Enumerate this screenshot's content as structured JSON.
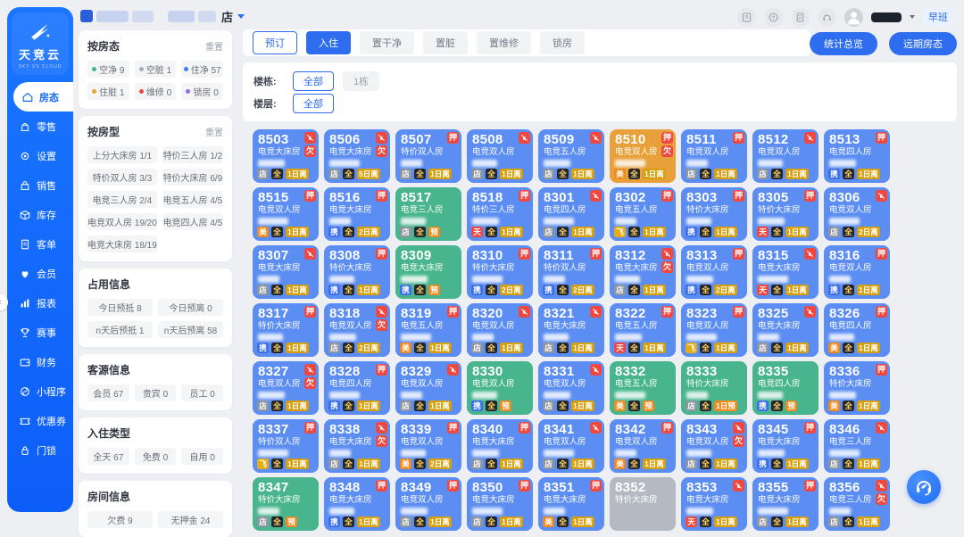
{
  "header": {
    "store_suffix": "店",
    "shift_label": "早班",
    "icons": [
      "board",
      "help",
      "doc",
      "headset"
    ],
    "stats_button": "统计总览",
    "future_button": "远期房态"
  },
  "sidebar": {
    "logo_title": "天竞云",
    "logo_subtitle": "SKY VS CLOUD",
    "items": [
      {
        "id": "room-status",
        "label": "房态",
        "icon": "home-icon",
        "active": true
      },
      {
        "id": "retail",
        "label": "零售",
        "icon": "retail-icon",
        "active": false
      },
      {
        "id": "settings",
        "label": "设置",
        "icon": "settings-icon",
        "active": false
      },
      {
        "id": "sales",
        "label": "销售",
        "icon": "sales-icon",
        "active": false
      },
      {
        "id": "inventory",
        "label": "库存",
        "icon": "inventory-icon",
        "active": false
      },
      {
        "id": "orders",
        "label": "客单",
        "icon": "orders-icon",
        "active": false
      },
      {
        "id": "members",
        "label": "会员",
        "icon": "members-icon",
        "active": false
      },
      {
        "id": "reports",
        "label": "报表",
        "icon": "reports-icon",
        "active": false
      },
      {
        "id": "events",
        "label": "赛事",
        "icon": "events-icon",
        "active": false
      },
      {
        "id": "finance",
        "label": "财务",
        "icon": "finance-icon",
        "active": false
      },
      {
        "id": "miniapp",
        "label": "小程序",
        "icon": "miniapp-icon",
        "active": false
      },
      {
        "id": "coupons",
        "label": "优惠券",
        "icon": "coupons-icon",
        "active": false
      },
      {
        "id": "doorlock",
        "label": "门锁",
        "icon": "doorlock-icon",
        "active": false
      }
    ]
  },
  "filter_panel": {
    "reset_label": "重置",
    "sections": [
      {
        "id": "by-status",
        "title": "按房态",
        "reset": true,
        "cols": 3,
        "status_chips": [
          {
            "label": "空净",
            "count": "9",
            "dot": "#3bbd8c"
          },
          {
            "label": "空脏",
            "count": "1",
            "dot": "#a8aeb8"
          },
          {
            "label": "住净",
            "count": "57",
            "dot": "#3d7bf7"
          },
          {
            "label": "住脏",
            "count": "1",
            "dot": "#f0a02f"
          },
          {
            "label": "维修",
            "count": "0",
            "dot": "#f0483e"
          },
          {
            "label": "锁房",
            "count": "0",
            "dot": "#8f6bf6"
          }
        ]
      },
      {
        "id": "by-type",
        "title": "按房型",
        "reset": true,
        "cols": 2,
        "chips": [
          "上分大床房 1/1",
          "特价三人房 1/2",
          "特价双人房 3/3",
          "特价大床房 6/9",
          "电竞三人房 2/4",
          "电竞五人房 4/5",
          "电竞双人房 19/20",
          "电竞四人房 4/5",
          "电竞大床房 18/19"
        ]
      },
      {
        "id": "occupancy",
        "title": "占用信息",
        "reset": false,
        "cols": 2,
        "chips": [
          "今日预抵 8",
          "今日预离 0",
          "n天后预抵 1",
          "n天后预离 58"
        ]
      },
      {
        "id": "guest-source",
        "title": "客源信息",
        "reset": false,
        "cols": 3,
        "chips": [
          "会员 67",
          "贵宾 0",
          "员工 0"
        ]
      },
      {
        "id": "stay-type",
        "title": "入住类型",
        "reset": false,
        "cols": 3,
        "chips": [
          "全天 67",
          "免费 0",
          "自用 0"
        ]
      },
      {
        "id": "room-info",
        "title": "房间信息",
        "reset": false,
        "cols": 2,
        "chips": [
          "欠费 9",
          "无押金 24"
        ]
      }
    ]
  },
  "toolbar": {
    "actions": [
      {
        "label": "预订",
        "style": "outline"
      },
      {
        "label": "入住",
        "style": "primary"
      },
      {
        "label": "置干净",
        "style": "plain"
      },
      {
        "label": "置脏",
        "style": "plain"
      },
      {
        "label": "置维修",
        "style": "plain"
      },
      {
        "label": "锁房",
        "style": "plain"
      }
    ]
  },
  "building_filter": {
    "rows": [
      {
        "label": "楼栋:",
        "options": [
          {
            "label": "全部",
            "selected": true
          },
          {
            "label": "1栋",
            "selected": false
          }
        ]
      },
      {
        "label": "楼层:",
        "options": [
          {
            "label": "全部",
            "selected": true
          }
        ]
      }
    ]
  },
  "colors": {
    "status": {
      "oc": "#5b8df2",
      "vc": "#48b58e",
      "od": "#e8a13a",
      "vd": "#b5bac2"
    },
    "primary": "#2f6df0",
    "badge_red": "#f0483e",
    "stay_bg": "#24262b",
    "stay_fg": "#ffd666",
    "depart_bg": "#d7a00f",
    "reserve_bg": "#f08a1d",
    "channels": {
      "店": "#8e959f",
      "携": "#3d6fe8",
      "美": "#f08a1d",
      "飞": "#e4af16",
      "天": "#f0483e"
    }
  },
  "rooms": [
    {
      "num": "8503",
      "type": "电竞大床房",
      "status": "oc",
      "no_clean": true,
      "tags": [
        "欠"
      ],
      "channel": "店",
      "stay": "全",
      "depart": "1日离"
    },
    {
      "num": "8506",
      "type": "电竞大床房",
      "status": "oc",
      "no_clean": true,
      "tags": [
        "欠"
      ],
      "channel": "店",
      "stay": "全",
      "depart": "5日离"
    },
    {
      "num": "8507",
      "type": "特价双人房",
      "status": "oc",
      "no_clean": false,
      "tags": [
        "押"
      ],
      "channel": "店",
      "stay": "全",
      "depart": "1日离"
    },
    {
      "num": "8508",
      "type": "电竞双人房",
      "status": "oc",
      "no_clean": true,
      "tags": [],
      "channel": "店",
      "stay": "全",
      "depart": "1日离"
    },
    {
      "num": "8509",
      "type": "电竞五人房",
      "status": "oc",
      "no_clean": true,
      "tags": [],
      "channel": "店",
      "stay": "全",
      "depart": "1日离"
    },
    {
      "num": "8510",
      "type": "电竞双人房",
      "status": "od",
      "no_clean": false,
      "tags": [
        "押",
        "欠"
      ],
      "channel": "美",
      "stay": "全",
      "depart": "1日离"
    },
    {
      "num": "8511",
      "type": "电竞双人房",
      "status": "oc",
      "no_clean": false,
      "tags": [
        "押"
      ],
      "channel": "店",
      "stay": "全",
      "depart": "1日离"
    },
    {
      "num": "8512",
      "type": "电竞双人房",
      "status": "oc",
      "no_clean": true,
      "tags": [],
      "channel": "店",
      "stay": "全",
      "depart": "1日离"
    },
    {
      "num": "8513",
      "type": "电竞四人房",
      "status": "oc",
      "no_clean": false,
      "tags": [
        "押"
      ],
      "channel": "携",
      "stay": "全",
      "depart": "1日离"
    },
    {
      "num": "8515",
      "type": "电竞双人房",
      "status": "oc",
      "no_clean": false,
      "tags": [
        "押"
      ],
      "channel": "美",
      "stay": "全",
      "depart": "1日离"
    },
    {
      "num": "8516",
      "type": "电竞大床房",
      "status": "oc",
      "no_clean": false,
      "tags": [
        "押"
      ],
      "channel": "携",
      "stay": "全",
      "depart": "2日离"
    },
    {
      "num": "8517",
      "type": "电竞三人房",
      "status": "vc",
      "no_clean": false,
      "tags": [],
      "channel": "店",
      "stay": "全",
      "depart": "预"
    },
    {
      "num": "8518",
      "type": "特价三人房",
      "status": "oc",
      "no_clean": false,
      "tags": [
        "押"
      ],
      "channel": "天",
      "stay": "全",
      "depart": "1日离"
    },
    {
      "num": "8301",
      "type": "电竞四人房",
      "status": "oc",
      "no_clean": true,
      "tags": [],
      "channel": "店",
      "stay": "全",
      "depart": "1日离"
    },
    {
      "num": "8302",
      "type": "电竞五人房",
      "status": "oc",
      "no_clean": false,
      "tags": [
        "押"
      ],
      "channel": "飞",
      "stay": "全",
      "depart": "1日离"
    },
    {
      "num": "8303",
      "type": "特价大床房",
      "status": "oc",
      "no_clean": false,
      "tags": [
        "押"
      ],
      "channel": "携",
      "stay": "全",
      "depart": "1日离"
    },
    {
      "num": "8305",
      "type": "特价大床房",
      "status": "oc",
      "no_clean": false,
      "tags": [
        "押"
      ],
      "channel": "天",
      "stay": "全",
      "depart": "1日离"
    },
    {
      "num": "8306",
      "type": "电竞双人房",
      "status": "oc",
      "no_clean": true,
      "tags": [],
      "channel": "店",
      "stay": "全",
      "depart": "2日离"
    },
    {
      "num": "8307",
      "type": "电竞大床房",
      "status": "oc",
      "no_clean": true,
      "tags": [],
      "channel": "店",
      "stay": "全",
      "depart": "1日离"
    },
    {
      "num": "8308",
      "type": "特价大床房",
      "status": "oc",
      "no_clean": false,
      "tags": [
        "押"
      ],
      "channel": "携",
      "stay": "全",
      "depart": "1日离"
    },
    {
      "num": "8309",
      "type": "电竞大床房",
      "status": "vc",
      "no_clean": false,
      "tags": [],
      "channel": "携",
      "stay": "全",
      "depart": "预"
    },
    {
      "num": "8310",
      "type": "特价大床房",
      "status": "oc",
      "no_clean": false,
      "tags": [
        "押"
      ],
      "channel": "携",
      "stay": "全",
      "depart": "2日离"
    },
    {
      "num": "8311",
      "type": "特价双人房",
      "status": "oc",
      "no_clean": false,
      "tags": [
        "押"
      ],
      "channel": "携",
      "stay": "全",
      "depart": "2日离"
    },
    {
      "num": "8312",
      "type": "电竞大床房",
      "status": "oc",
      "no_clean": true,
      "tags": [
        "欠"
      ],
      "channel": "店",
      "stay": "全",
      "depart": "1日离"
    },
    {
      "num": "8313",
      "type": "电竞双人房",
      "status": "oc",
      "no_clean": false,
      "tags": [
        "押"
      ],
      "channel": "携",
      "stay": "全",
      "depart": "2日离"
    },
    {
      "num": "8315",
      "type": "电竞大床房",
      "status": "oc",
      "no_clean": true,
      "tags": [],
      "channel": "天",
      "stay": "全",
      "depart": "1日离"
    },
    {
      "num": "8316",
      "type": "电竞双人房",
      "status": "oc",
      "no_clean": false,
      "tags": [
        "押"
      ],
      "channel": "携",
      "stay": "全",
      "depart": "1日离"
    },
    {
      "num": "8317",
      "type": "特价大床房",
      "status": "oc",
      "no_clean": false,
      "tags": [
        "押"
      ],
      "channel": "携",
      "stay": "全",
      "depart": "1日离"
    },
    {
      "num": "8318",
      "type": "电竞双人房",
      "status": "oc",
      "no_clean": true,
      "tags": [
        "欠"
      ],
      "channel": "店",
      "stay": "全",
      "depart": "2日离"
    },
    {
      "num": "8319",
      "type": "电竞五人房",
      "status": "oc",
      "no_clean": false,
      "tags": [
        "押"
      ],
      "channel": "美",
      "stay": "全",
      "depart": "1日离"
    },
    {
      "num": "8320",
      "type": "电竞双人房",
      "status": "oc",
      "no_clean": true,
      "tags": [],
      "channel": "店",
      "stay": "全",
      "depart": "1日离"
    },
    {
      "num": "8321",
      "type": "电竞大床房",
      "status": "oc",
      "no_clean": true,
      "tags": [],
      "channel": "店",
      "stay": "全",
      "depart": "1日离"
    },
    {
      "num": "8322",
      "type": "电竞五人房",
      "status": "oc",
      "no_clean": false,
      "tags": [
        "押"
      ],
      "channel": "天",
      "stay": "全",
      "depart": "1日离"
    },
    {
      "num": "8323",
      "type": "电竞双人房",
      "status": "oc",
      "no_clean": false,
      "tags": [
        "押"
      ],
      "channel": "飞",
      "stay": "全",
      "depart": "1日离"
    },
    {
      "num": "8325",
      "type": "电竞大床房",
      "status": "oc",
      "no_clean": true,
      "tags": [],
      "channel": "店",
      "stay": "全",
      "depart": "1日离"
    },
    {
      "num": "8326",
      "type": "电竞四人房",
      "status": "oc",
      "no_clean": false,
      "tags": [
        "押"
      ],
      "channel": "美",
      "stay": "全",
      "depart": "1日离"
    },
    {
      "num": "8327",
      "type": "电竞双人房",
      "status": "oc",
      "no_clean": true,
      "tags": [
        "欠"
      ],
      "channel": "店",
      "stay": "全",
      "depart": "1日离"
    },
    {
      "num": "8328",
      "type": "电竞四人房",
      "status": "oc",
      "no_clean": false,
      "tags": [
        "押"
      ],
      "channel": "携",
      "stay": "全",
      "depart": "1日离"
    },
    {
      "num": "8329",
      "type": "电竞双人房",
      "status": "oc",
      "no_clean": true,
      "tags": [],
      "channel": "店",
      "stay": "全",
      "depart": "1日离"
    },
    {
      "num": "8330",
      "type": "电竞双人房",
      "status": "vc",
      "no_clean": false,
      "tags": [],
      "channel": "携",
      "stay": "全",
      "depart": "预"
    },
    {
      "num": "8331",
      "type": "电竞双人房",
      "status": "oc",
      "no_clean": true,
      "tags": [],
      "channel": "店",
      "stay": "全",
      "depart": "1日离"
    },
    {
      "num": "8332",
      "type": "电竞五人房",
      "status": "vc",
      "no_clean": false,
      "tags": [],
      "channel": "美",
      "stay": "全",
      "depart": "预"
    },
    {
      "num": "8333",
      "type": "特价大床房",
      "status": "vc",
      "no_clean": false,
      "tags": [],
      "channel": "店",
      "stay": "全",
      "depart": "1日预"
    },
    {
      "num": "8335",
      "type": "电竞四人房",
      "status": "vc",
      "no_clean": false,
      "tags": [],
      "channel": "携",
      "stay": "全",
      "depart": "预"
    },
    {
      "num": "8336",
      "type": "特价大床房",
      "status": "oc",
      "no_clean": false,
      "tags": [
        "押"
      ],
      "channel": "美",
      "stay": "全",
      "depart": "1日离"
    },
    {
      "num": "8337",
      "type": "特价双人房",
      "status": "oc",
      "no_clean": false,
      "tags": [
        "押"
      ],
      "channel": "飞",
      "stay": "全",
      "depart": "1日离"
    },
    {
      "num": "8338",
      "type": "电竞大床房",
      "status": "oc",
      "no_clean": true,
      "tags": [
        "欠"
      ],
      "channel": "店",
      "stay": "全",
      "depart": "1日离"
    },
    {
      "num": "8339",
      "type": "电竞双人房",
      "status": "oc",
      "no_clean": false,
      "tags": [
        "押"
      ],
      "channel": "美",
      "stay": "全",
      "depart": "2日离"
    },
    {
      "num": "8340",
      "type": "电竞大床房",
      "status": "oc",
      "no_clean": false,
      "tags": [
        "押"
      ],
      "channel": "店",
      "stay": "全",
      "depart": "1日离"
    },
    {
      "num": "8341",
      "type": "电竞双人房",
      "status": "oc",
      "no_clean": true,
      "tags": [],
      "channel": "店",
      "stay": "全",
      "depart": "1日离"
    },
    {
      "num": "8342",
      "type": "电竞双人房",
      "status": "oc",
      "no_clean": false,
      "tags": [
        "押"
      ],
      "channel": "美",
      "stay": "全",
      "depart": "1日离"
    },
    {
      "num": "8343",
      "type": "电竞双人房",
      "status": "oc",
      "no_clean": true,
      "tags": [
        "欠"
      ],
      "channel": "店",
      "stay": "全",
      "depart": "1日离"
    },
    {
      "num": "8345",
      "type": "电竞大床房",
      "status": "oc",
      "no_clean": false,
      "tags": [
        "押"
      ],
      "channel": "携",
      "stay": "全",
      "depart": "1日离"
    },
    {
      "num": "8346",
      "type": "电竞三人房",
      "status": "oc",
      "no_clean": true,
      "tags": [],
      "channel": "店",
      "stay": "全",
      "depart": "1日离"
    },
    {
      "num": "8347",
      "type": "特价大床房",
      "status": "vc",
      "no_clean": false,
      "tags": [],
      "channel": "店",
      "stay": "全",
      "depart": "预"
    },
    {
      "num": "8348",
      "type": "电竞大床房",
      "status": "oc",
      "no_clean": false,
      "tags": [
        "押"
      ],
      "channel": "携",
      "stay": "全",
      "depart": "1日离"
    },
    {
      "num": "8349",
      "type": "电竞双人房",
      "status": "oc",
      "no_clean": false,
      "tags": [
        "押"
      ],
      "channel": "店",
      "stay": "全",
      "depart": "1日离"
    },
    {
      "num": "8350",
      "type": "电竞大床房",
      "status": "oc",
      "no_clean": false,
      "tags": [
        "押"
      ],
      "channel": "店",
      "stay": "全",
      "depart": "1日离"
    },
    {
      "num": "8351",
      "type": "电竞大床房",
      "status": "oc",
      "no_clean": false,
      "tags": [
        "押"
      ],
      "channel": "美",
      "stay": "全",
      "depart": "1日离"
    },
    {
      "num": "8352",
      "type": "特价大床房",
      "status": "vd",
      "no_clean": false,
      "tags": [],
      "channel": null,
      "stay": null,
      "depart": null
    },
    {
      "num": "8353",
      "type": "电竞大床房",
      "status": "oc",
      "no_clean": true,
      "tags": [],
      "channel": "天",
      "stay": "全",
      "depart": "1日离"
    },
    {
      "num": "8355",
      "type": "电竞大床房",
      "status": "oc",
      "no_clean": false,
      "tags": [
        "押"
      ],
      "channel": "店",
      "stay": "全",
      "depart": "1日离"
    },
    {
      "num": "8356",
      "type": "电竞三人房",
      "status": "oc",
      "no_clean": true,
      "tags": [
        "欠"
      ],
      "channel": "店",
      "stay": "全",
      "depart": "1日离"
    }
  ]
}
